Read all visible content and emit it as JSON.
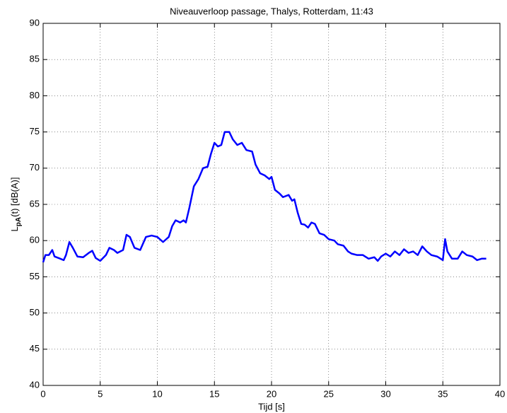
{
  "chart_data": {
    "type": "line",
    "title": "Niveauverloop passage, Thalys, Rotterdam, 11:43",
    "xlabel": "Tijd [s]",
    "ylabel": [
      "L",
      "pA",
      "(t) [dB(A)]"
    ],
    "xlim": [
      0,
      40
    ],
    "ylim": [
      40,
      90
    ],
    "xticks": [
      0,
      5,
      10,
      15,
      20,
      25,
      30,
      35,
      40
    ],
    "yticks": [
      40,
      45,
      50,
      55,
      60,
      65,
      70,
      75,
      80,
      85,
      90
    ],
    "grid": true,
    "x": [
      0,
      0.2,
      0.5,
      0.8,
      1.0,
      1.5,
      1.8,
      2.0,
      2.3,
      2.6,
      3.0,
      3.5,
      4.0,
      4.3,
      4.6,
      5.0,
      5.5,
      5.8,
      6.2,
      6.5,
      7.0,
      7.3,
      7.6,
      8.0,
      8.5,
      9.0,
      9.5,
      10.0,
      10.5,
      11.0,
      11.3,
      11.6,
      12.0,
      12.3,
      12.5,
      12.8,
      13.2,
      13.6,
      14.0,
      14.4,
      14.7,
      15.0,
      15.3,
      15.6,
      15.9,
      16.3,
      16.6,
      17.0,
      17.4,
      17.8,
      18.3,
      18.6,
      19.0,
      19.4,
      19.8,
      20.0,
      20.3,
      20.7,
      21.0,
      21.5,
      21.8,
      22.0,
      22.3,
      22.6,
      22.9,
      23.2,
      23.5,
      23.8,
      24.2,
      24.6,
      25.0,
      25.5,
      25.8,
      26.3,
      26.7,
      27.0,
      27.5,
      28.0,
      28.5,
      29.0,
      29.3,
      29.6,
      30.0,
      30.4,
      30.8,
      31.2,
      31.6,
      32.0,
      32.4,
      32.8,
      33.2,
      33.6,
      34.0,
      34.5,
      35.0,
      35.2,
      35.4,
      35.8,
      36.3,
      36.7,
      37.1,
      37.6,
      38.0,
      38.4,
      38.8
    ],
    "series": [
      {
        "color": "#0000ff",
        "values": [
          57.0,
          58.0,
          58.0,
          58.7,
          57.8,
          57.5,
          57.3,
          58.0,
          59.8,
          59.0,
          57.8,
          57.7,
          58.3,
          58.6,
          57.6,
          57.2,
          58.0,
          59.0,
          58.7,
          58.3,
          58.7,
          60.8,
          60.5,
          59.0,
          58.7,
          60.5,
          60.7,
          60.5,
          59.8,
          60.5,
          62.0,
          62.8,
          62.5,
          62.8,
          62.5,
          64.5,
          67.5,
          68.5,
          70.0,
          70.2,
          72.0,
          73.5,
          73.0,
          73.2,
          75.0,
          75.0,
          74.0,
          73.2,
          73.5,
          72.5,
          72.3,
          70.5,
          69.3,
          69.0,
          68.5,
          68.8,
          67.0,
          66.5,
          66.0,
          66.3,
          65.5,
          65.7,
          63.8,
          62.3,
          62.2,
          61.8,
          62.5,
          62.3,
          61.0,
          60.8,
          60.2,
          60.0,
          59.5,
          59.3,
          58.5,
          58.2,
          58.0,
          58.0,
          57.5,
          57.7,
          57.2,
          57.8,
          58.2,
          57.8,
          58.5,
          58.0,
          58.8,
          58.3,
          58.5,
          58.0,
          59.2,
          58.5,
          58.0,
          57.8,
          57.3,
          60.2,
          58.5,
          57.5,
          57.5,
          58.5,
          58.0,
          57.8,
          57.3,
          57.5,
          57.5
        ]
      }
    ]
  }
}
